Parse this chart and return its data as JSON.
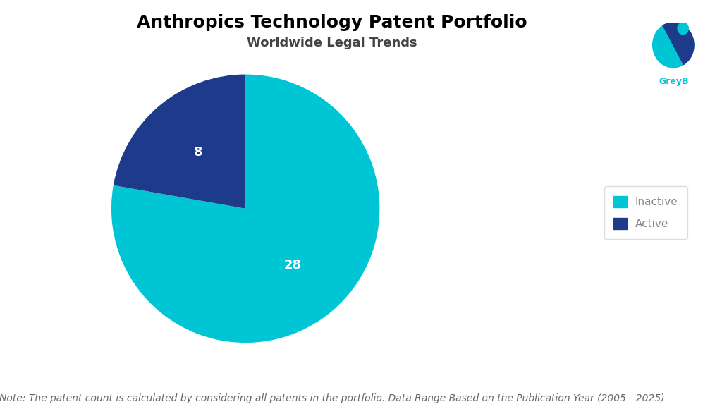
{
  "title": "Anthropics Technology Patent Portfolio",
  "subtitle": "Worldwide Legal Trends",
  "labels": [
    "Inactive",
    "Active"
  ],
  "values": [
    28,
    8
  ],
  "colors": [
    "#00C5D4",
    "#1E3A8A"
  ],
  "label_colors": [
    "white",
    "white"
  ],
  "note": "Note: The patent count is calculated by considering all patents in the portfolio. Data Range Based on the Publication Year (2005 - 2025)",
  "legend_labels": [
    "Inactive",
    "Active"
  ],
  "background_color": "#ffffff",
  "title_fontsize": 18,
  "subtitle_fontsize": 13,
  "note_fontsize": 10,
  "label_fontsize": 13,
  "legend_fontsize": 11,
  "legend_text_color": "#888888"
}
